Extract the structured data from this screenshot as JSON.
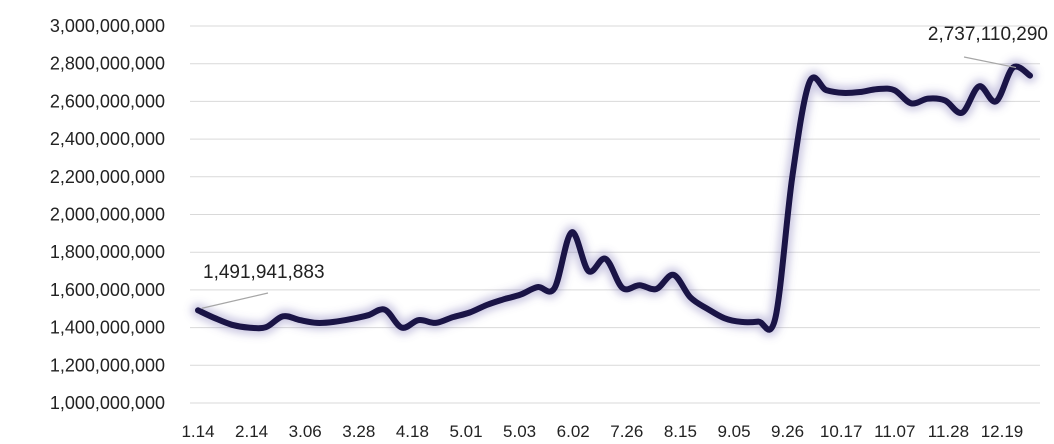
{
  "chart_data": {
    "type": "line",
    "title": "",
    "xlabel": "",
    "ylabel": "",
    "ylim": [
      1000000000,
      3000000000
    ],
    "y_ticks": [
      "3,000,000,000",
      "2,800,000,000",
      "2,600,000,000",
      "2,400,000,000",
      "2,200,000,000",
      "2,000,000,000",
      "1,800,000,000",
      "1,600,000,000",
      "1,400,000,000",
      "1,200,000,000",
      "1,000,000,000"
    ],
    "x_ticks": [
      "1.14",
      "2.14",
      "3.06",
      "3.28",
      "4.18",
      "5.01",
      "5.03",
      "6.02",
      "7.26",
      "8.15",
      "9.05",
      "9.26",
      "10.17",
      "11.07",
      "11.28",
      "12.19"
    ],
    "grid": true,
    "line_color": "#1a1446",
    "series": [
      {
        "values": [
          1491941883,
          1450000000,
          1415000000,
          1400000000,
          1402000000,
          1460000000,
          1440000000,
          1425000000,
          1430000000,
          1445000000,
          1465000000,
          1495000000,
          1400000000,
          1440000000,
          1425000000,
          1455000000,
          1480000000,
          1520000000,
          1550000000,
          1575000000,
          1615000000,
          1610000000,
          1905000000,
          1700000000,
          1765000000,
          1610000000,
          1625000000,
          1605000000,
          1680000000,
          1560000000,
          1500000000,
          1450000000,
          1430000000,
          1432000000,
          1450000000,
          2200000000,
          2700000000,
          2660000000,
          2645000000,
          2650000000,
          2665000000,
          2660000000,
          2590000000,
          2615000000,
          2605000000,
          2540000000,
          2680000000,
          2600000000,
          2780000000,
          2737110290
        ]
      }
    ],
    "annotations": [
      {
        "label": "1,491,941,883",
        "point": "first"
      },
      {
        "label": "2,737,110,290",
        "point": "last"
      }
    ]
  }
}
